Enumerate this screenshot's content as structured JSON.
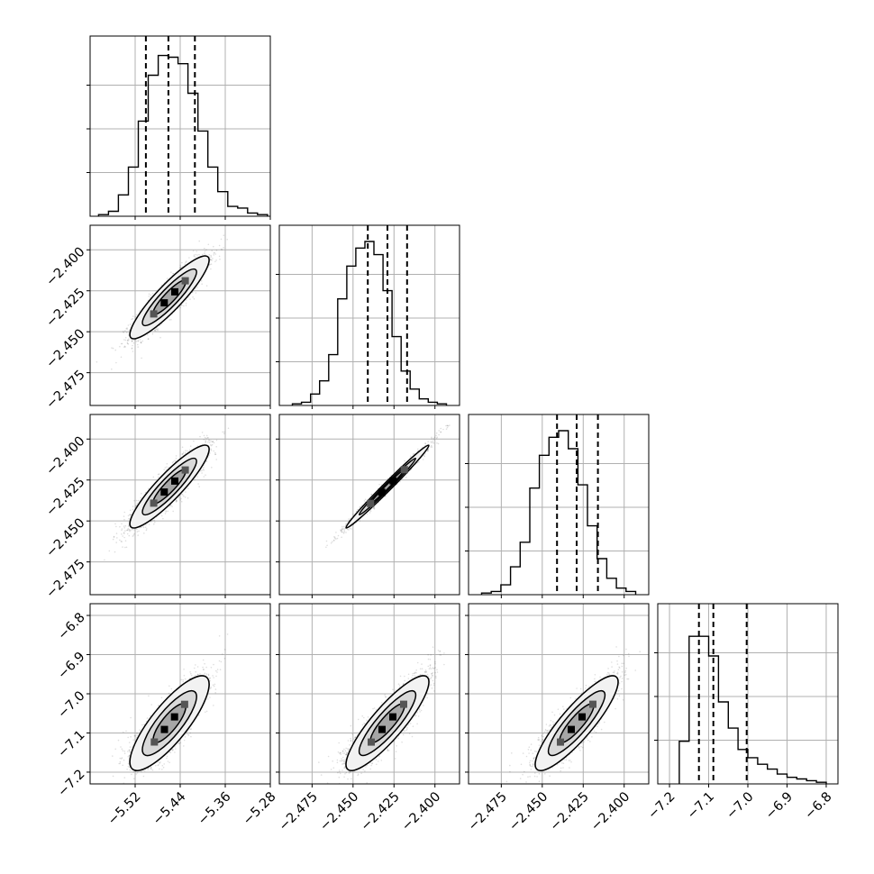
{
  "chart_data": {
    "type": "corner",
    "grid": true,
    "colors": {
      "frame": "#000000",
      "grid": "#b0b0b0",
      "hist": "#000000",
      "quantile": "#000000"
    },
    "parameters": [
      {
        "index": 0,
        "range": [
          -5.6,
          -5.28
        ],
        "ticks": [
          -5.52,
          -5.44,
          -5.36,
          -5.28
        ],
        "tick_labels": [
          "−5.52",
          "−5.44",
          "−5.36",
          "−5.28"
        ],
        "quantiles": [
          -5.501,
          -5.461,
          -5.414
        ],
        "mean": -5.459,
        "sd": 0.032
      },
      {
        "index": 1,
        "range": [
          -2.495,
          -2.385
        ],
        "ticks": [
          -2.475,
          -2.45,
          -2.425,
          -2.4
        ],
        "tick_labels": [
          "−2.475",
          "−2.450",
          "−2.425",
          "−2.400"
        ],
        "quantiles": [
          -2.441,
          -2.429,
          -2.417
        ],
        "mean": -2.429,
        "sd": 0.0115
      },
      {
        "index": 2,
        "range": [
          -2.495,
          -2.385
        ],
        "ticks": [
          -2.475,
          -2.45,
          -2.425,
          -2.4
        ],
        "tick_labels": [
          "−2.475",
          "−2.450",
          "−2.425",
          "−2.400"
        ],
        "quantiles": [
          -2.441,
          -2.429,
          -2.416
        ],
        "mean": -2.429,
        "sd": 0.0115
      },
      {
        "index": 3,
        "range": [
          -7.23,
          -6.77
        ],
        "ticks": [
          -7.2,
          -7.1,
          -7.0,
          -6.9,
          -6.8
        ],
        "tick_labels": [
          "−7.2",
          "−7.1",
          "−7.0",
          "−6.9",
          "−6.8"
        ],
        "quantiles": [
          -7.125,
          -7.088,
          -7.003
        ],
        "mean": -7.075,
        "sd": 0.055
      }
    ],
    "histograms": [
      [
        0.01,
        0.03,
        0.13,
        0.3,
        0.58,
        0.86,
        0.98,
        0.97,
        0.93,
        0.75,
        0.52,
        0.3,
        0.15,
        0.06,
        0.05,
        0.02,
        0.01
      ],
      [
        0.01,
        0.02,
        0.07,
        0.15,
        0.31,
        0.65,
        0.85,
        0.96,
        1.0,
        0.92,
        0.7,
        0.42,
        0.21,
        0.1,
        0.04,
        0.02,
        0.01
      ],
      [
        0.01,
        0.02,
        0.06,
        0.17,
        0.32,
        0.65,
        0.85,
        0.96,
        1.0,
        0.89,
        0.67,
        0.42,
        0.22,
        0.1,
        0.04,
        0.02
      ],
      [
        0.26,
        0.9,
        0.9,
        0.78,
        0.5,
        0.34,
        0.21,
        0.16,
        0.12,
        0.09,
        0.06,
        0.04,
        0.03,
        0.02,
        0.01
      ]
    ],
    "histogram_start": [
      -5.585,
      -2.487,
      -2.487,
      -7.175
    ],
    "histogram_end": [
      -5.285,
      -2.393,
      -2.393,
      -6.8
    ],
    "correlations": {
      "1_0": 0.9,
      "2_0": 0.9,
      "2_1": 0.99,
      "3_0": 0.82,
      "3_1": 0.87,
      "3_2": 0.87
    }
  }
}
